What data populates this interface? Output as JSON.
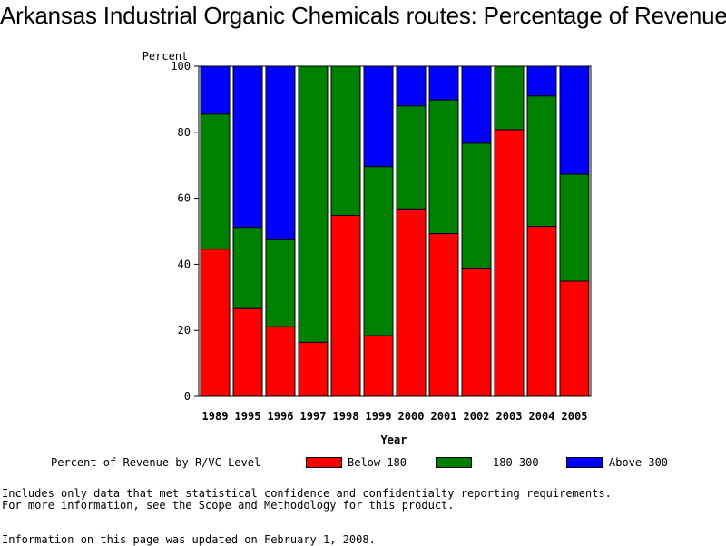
{
  "chart_data": {
    "type": "bar",
    "stacked": true,
    "title": "Arkansas Industrial Organic Chemicals routes: Percentage of Revenue",
    "ylabel": "Percent",
    "xlabel": "Year",
    "ylim": [
      0,
      100
    ],
    "yticks": [
      0,
      20,
      40,
      60,
      80,
      100
    ],
    "categories": [
      "1989",
      "1995",
      "1996",
      "1997",
      "1998",
      "1999",
      "2000",
      "2001",
      "2002",
      "2003",
      "2004",
      "2005"
    ],
    "series": [
      {
        "name": "Below 180",
        "color": "#ff0000",
        "values": [
          44.6,
          26.6,
          21.1,
          16.4,
          54.8,
          18.4,
          56.8,
          49.3,
          38.6,
          80.8,
          51.5,
          34.9
        ]
      },
      {
        "name": "180-300",
        "color": "#008000",
        "values": [
          40.9,
          24.6,
          26.3,
          83.6,
          45.2,
          51.2,
          31.2,
          40.5,
          38.1,
          19.2,
          39.5,
          32.4
        ]
      },
      {
        "name": "Above 300",
        "color": "#0000ff",
        "values": [
          14.5,
          48.8,
          52.6,
          0.0,
          0.0,
          30.4,
          12.0,
          10.2,
          23.3,
          0.0,
          9.0,
          32.7
        ]
      }
    ]
  },
  "legend": {
    "heading": "Percent of Revenue by R/VC Level",
    "items": [
      {
        "label": "Below 180",
        "color": "#ff0000"
      },
      {
        "label": "180-300",
        "color": "#008000"
      },
      {
        "label": "Above 300",
        "color": "#0000ff"
      }
    ]
  },
  "notes": {
    "line1": "Includes only data that met statistical confidence and confidentialty reporting requirements.",
    "line2": "For more information, see the Scope and Methodology for this product.",
    "updated": "Information on this page was updated on February 1, 2008."
  }
}
